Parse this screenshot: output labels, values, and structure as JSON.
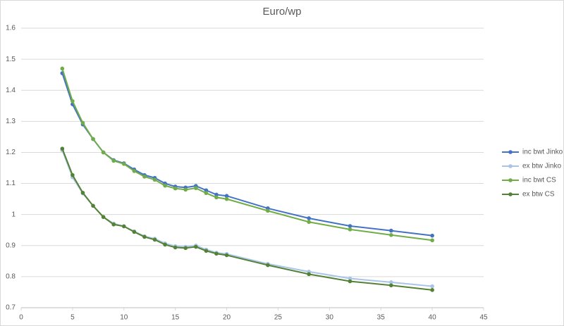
{
  "chart_data": {
    "type": "line",
    "title": "Euro/wp",
    "x": [
      4,
      5,
      6,
      7,
      8,
      9,
      10,
      11,
      12,
      13,
      14,
      15,
      16,
      17,
      18,
      19,
      20,
      24,
      28,
      32,
      36,
      40
    ],
    "series": [
      {
        "name": "inc bwt Jinko",
        "color": "#4472c4",
        "values": [
          1.455,
          1.355,
          1.29,
          1.243,
          1.2,
          1.175,
          1.165,
          1.145,
          1.127,
          1.118,
          1.1,
          1.09,
          1.087,
          1.092,
          1.078,
          1.064,
          1.06,
          1.02,
          0.988,
          0.963,
          0.948,
          0.932
        ]
      },
      {
        "name": "ex btw Jinko",
        "color": "#a9c4e8",
        "values": [
          1.207,
          1.12,
          1.068,
          1.028,
          0.992,
          0.971,
          0.962,
          0.946,
          0.93,
          0.922,
          0.907,
          0.898,
          0.896,
          0.9,
          0.887,
          0.877,
          0.873,
          0.841,
          0.816,
          0.794,
          0.782,
          0.769
        ]
      },
      {
        "name": "inc bwt CS",
        "color": "#70ad47",
        "values": [
          1.47,
          1.365,
          1.295,
          1.243,
          1.2,
          1.173,
          1.163,
          1.14,
          1.122,
          1.112,
          1.093,
          1.084,
          1.08,
          1.085,
          1.069,
          1.055,
          1.05,
          1.012,
          0.976,
          0.952,
          0.934,
          0.917
        ]
      },
      {
        "name": "ex btw CS",
        "color": "#548235",
        "values": [
          1.212,
          1.127,
          1.07,
          1.028,
          0.992,
          0.968,
          0.962,
          0.944,
          0.928,
          0.919,
          0.903,
          0.894,
          0.892,
          0.896,
          0.883,
          0.874,
          0.869,
          0.837,
          0.808,
          0.785,
          0.772,
          0.757
        ]
      }
    ],
    "xlim": [
      0,
      45
    ],
    "xticks": [
      0,
      5,
      10,
      15,
      20,
      25,
      30,
      35,
      40,
      45
    ],
    "ylim": [
      0.7,
      1.6
    ],
    "yticks": [
      0.7,
      0.8,
      0.9,
      1,
      1.1,
      1.2,
      1.3,
      1.4,
      1.5,
      1.6
    ],
    "grid": true,
    "legend": "right"
  }
}
